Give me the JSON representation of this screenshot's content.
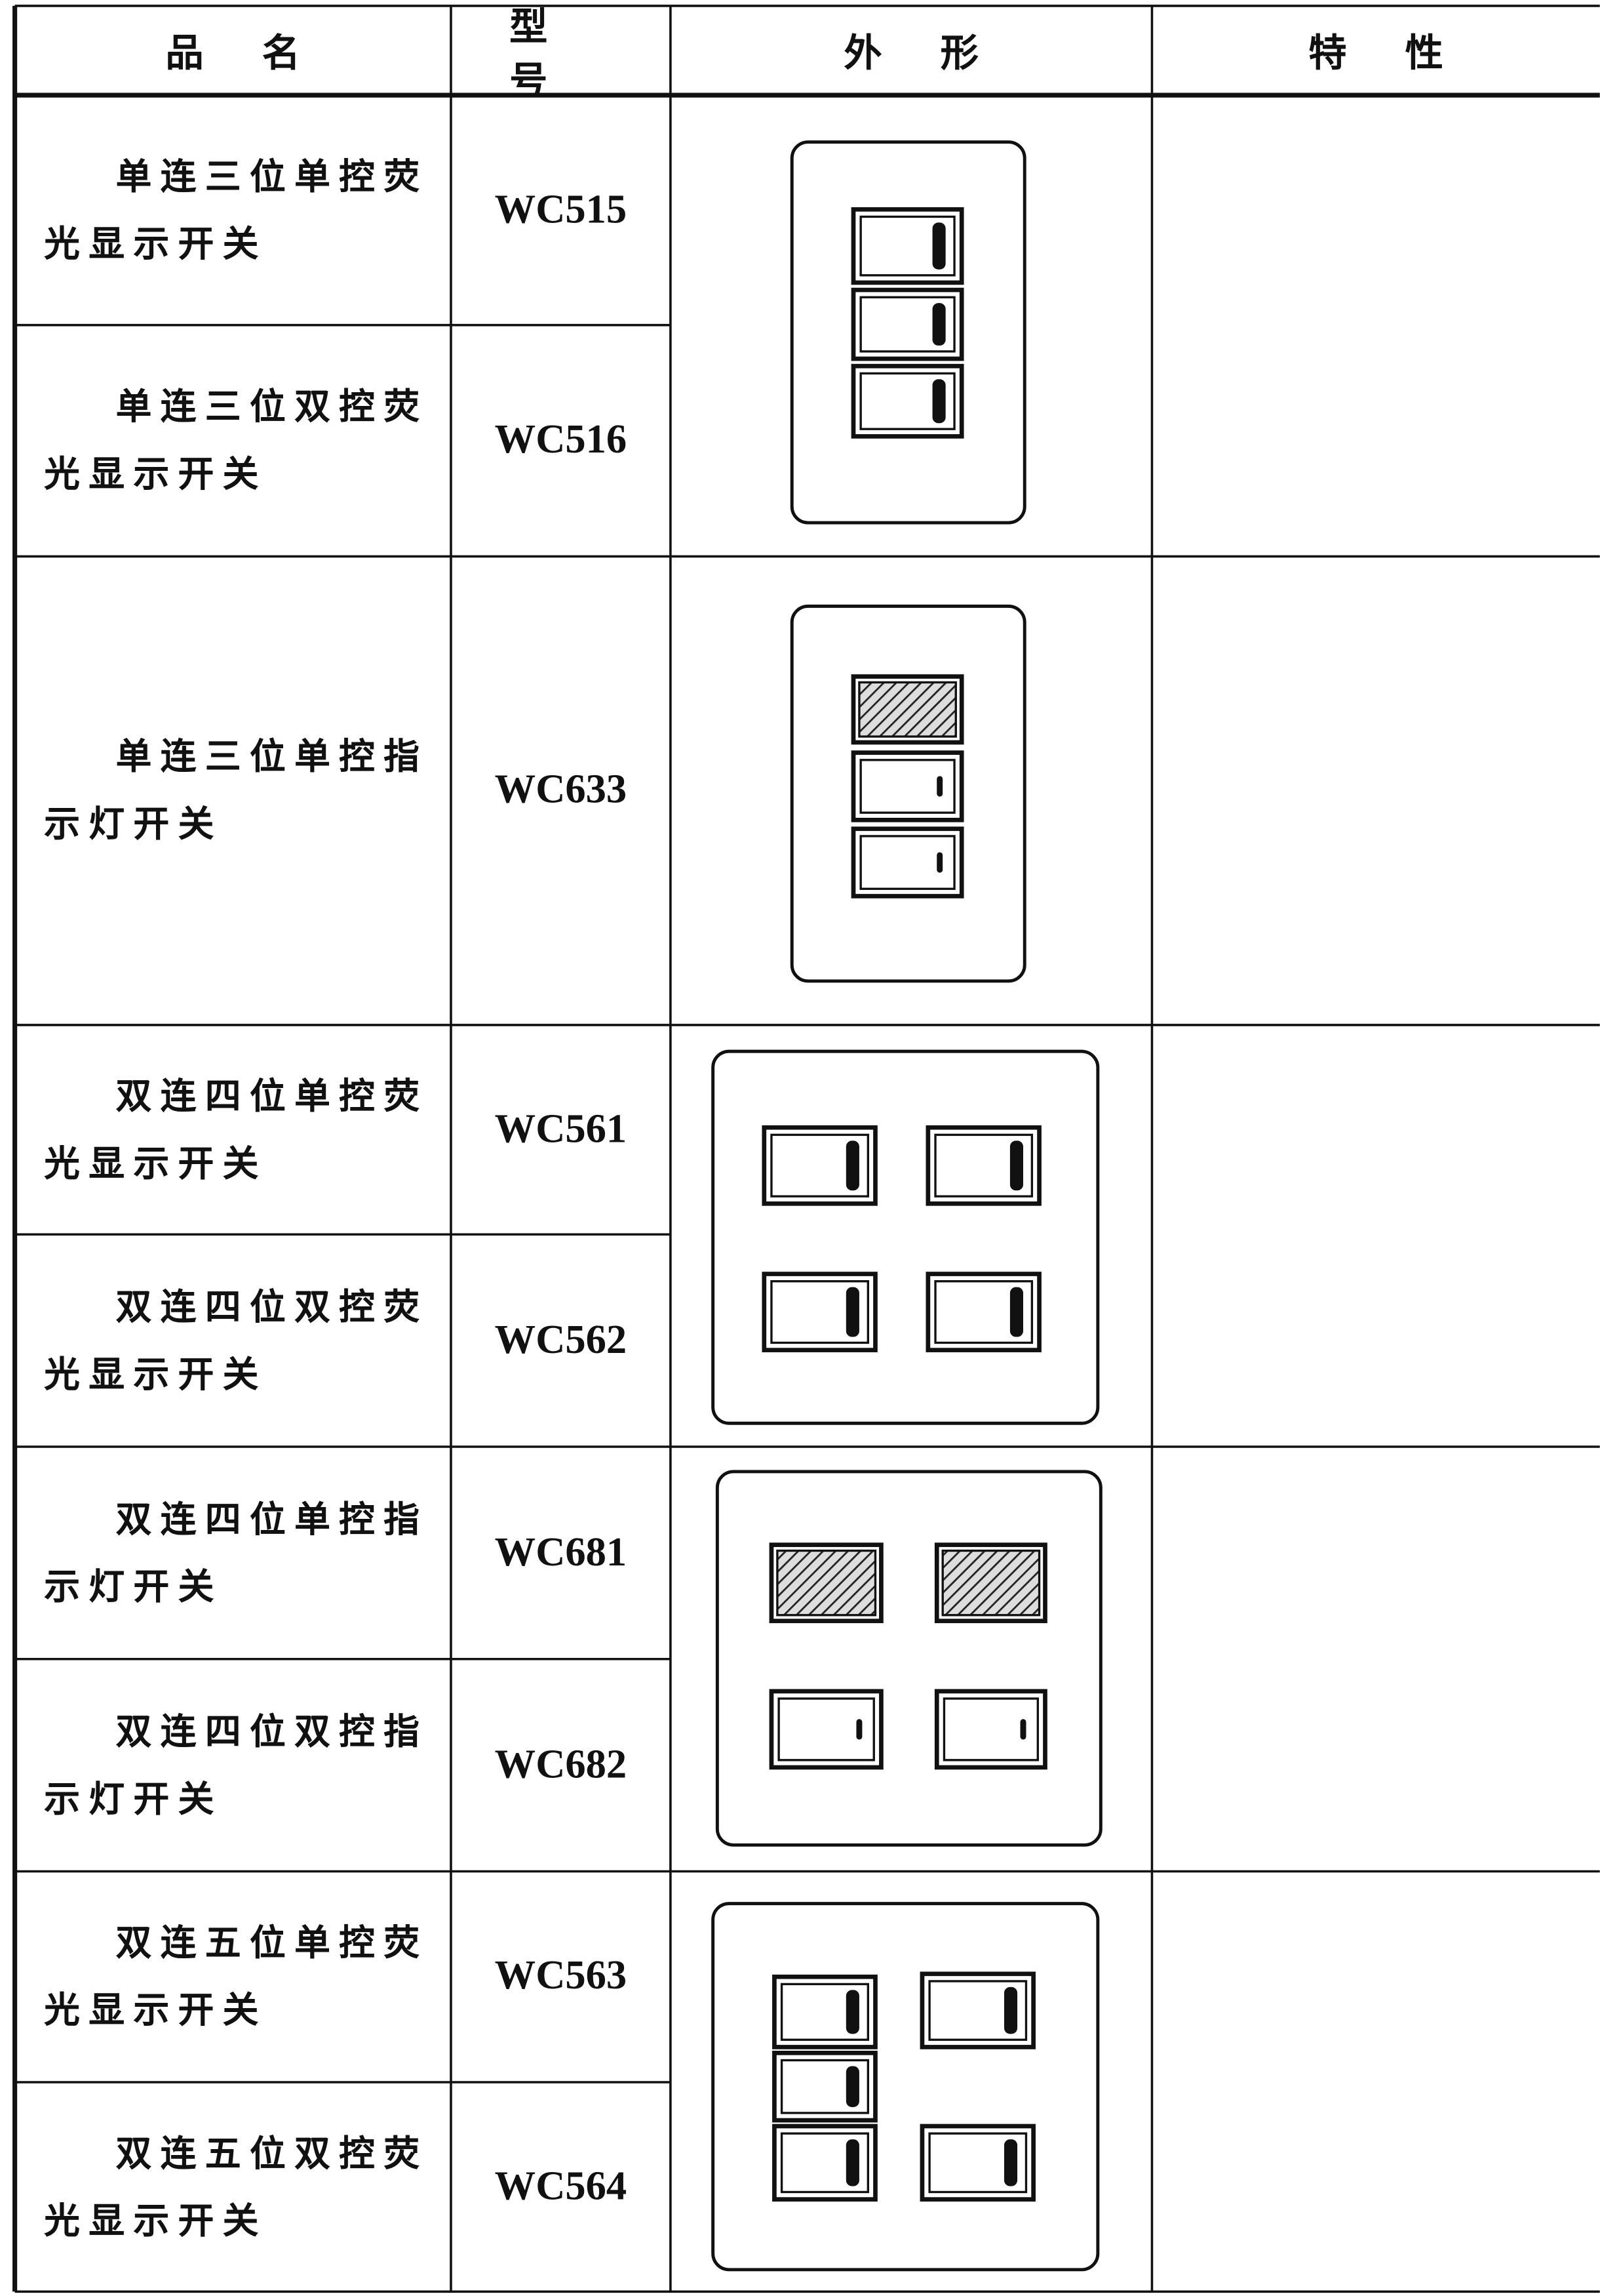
{
  "header": {
    "columns": [
      "品名",
      "型号",
      "外形",
      "特性"
    ]
  },
  "table": {
    "rows": [
      {
        "name": "单连三位单控荧光显示开关",
        "model": "WC515"
      },
      {
        "name": "单连三位双控荧光显示开关",
        "model": "WC516"
      },
      {
        "name": "单连三位单控指示灯开关",
        "model": "WC633"
      },
      {
        "name": "双连四位单控荧光显示开关",
        "model": "WC561"
      },
      {
        "name": "双连四位双控荧光显示开关",
        "model": "WC562"
      },
      {
        "name": "双连四位单控指示灯开关",
        "model": "WC681"
      },
      {
        "name": "双连四位双控指示灯开关",
        "model": "WC682"
      },
      {
        "name": "双连五位单控荧光显示开关",
        "model": "WC563"
      },
      {
        "name": "双连五位双控荧光显示开关",
        "model": "WC564"
      }
    ]
  }
}
